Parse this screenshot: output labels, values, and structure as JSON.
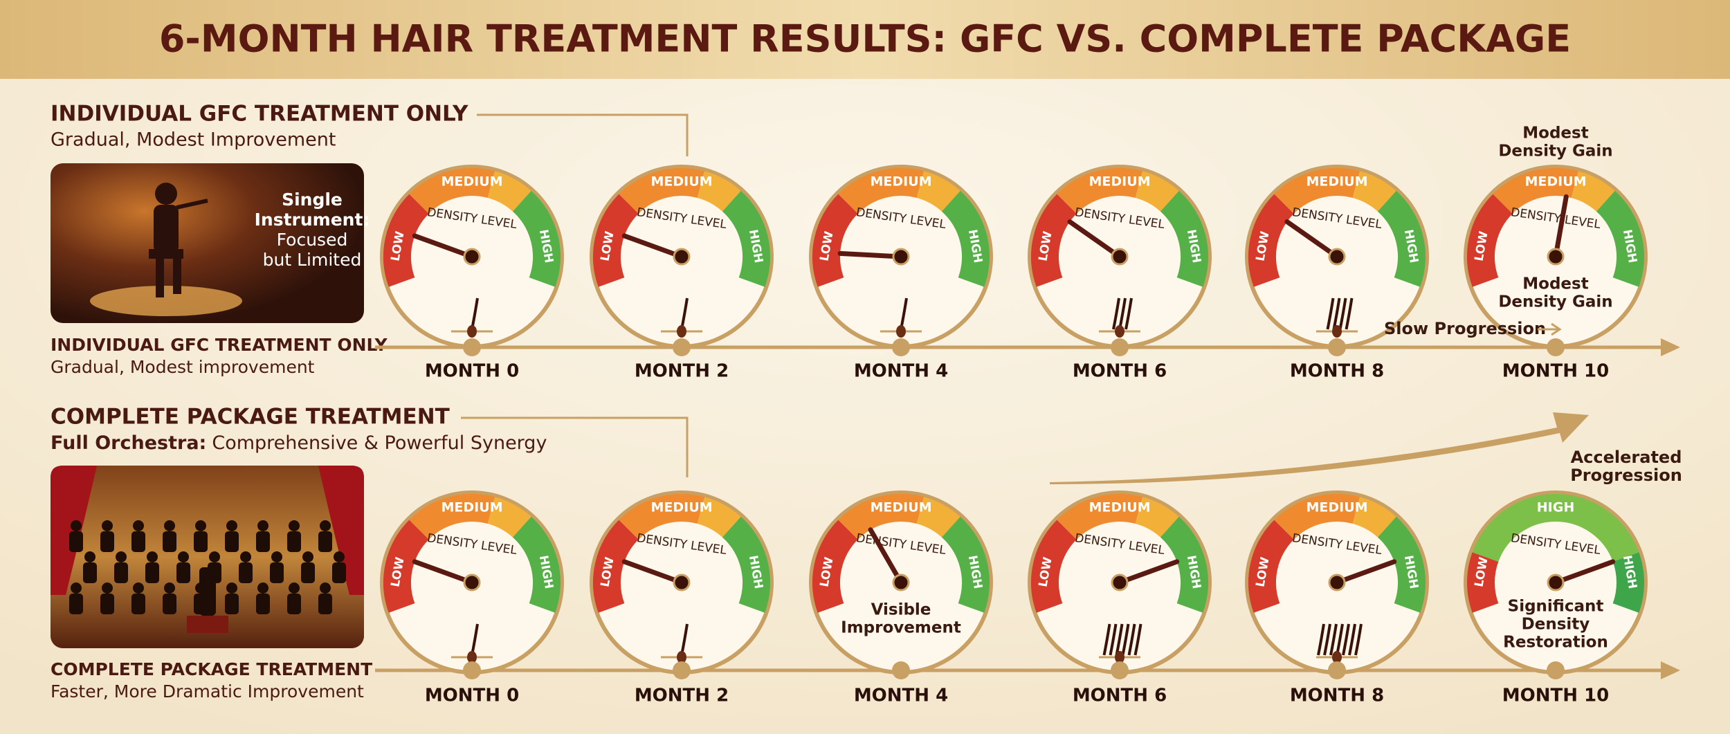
{
  "header": {
    "title": "6-MONTH HAIR TREATMENT RESULTS: GFC VS. COMPLETE PACKAGE"
  },
  "sections": [
    {
      "heading": "INDIVIDUAL GFC TREATMENT ONLY",
      "subheading": "Gradual, Modest Improvement",
      "image_caption": [
        "Single",
        "Instrument:",
        "Focused",
        "but Limited"
      ],
      "timeline_heading": "INDIVIDUAL GFC TREATMENT ONLY",
      "timeline_subheading": "Gradual, Modest improvement",
      "progression": [
        "Slow Progression"
      ],
      "gauges": [
        {
          "month": "MONTH 0",
          "low": "LOW",
          "top": "MEDIUM",
          "high": "HIGH",
          "center": "DENSITY LEVEL"
        },
        {
          "month": "MONTH 2",
          "low": "LOW",
          "top": "MEDIUM",
          "high": "HIGH",
          "center": "DENSITY LEVEL"
        },
        {
          "month": "MONTH 4",
          "low": "LOW",
          "top": "MEDIUM",
          "high": "HIGH",
          "center": "DENSITY LEVEL"
        },
        {
          "month": "MONTH 6",
          "low": "LOW",
          "top": "MEDIUM",
          "high": "HIGH",
          "center": "DENSITY LEVEL"
        },
        {
          "month": "MONTH 8",
          "low": "LOW",
          "top": "MEDIUM",
          "high": "HIGH",
          "center": "DENSITY LEVEL"
        },
        {
          "month": "MONTH 10",
          "low": "LOW",
          "top": "MEDIUM",
          "high": "HIGH",
          "center": "DENSITY LEVEL",
          "note_above": [
            "Modest",
            "Density Gain"
          ],
          "note": [
            "Modest",
            "Density Gain"
          ]
        }
      ]
    },
    {
      "heading": "COMPLETE PACKAGE TREATMENT",
      "subheading_bold": "Full Orchestra:",
      "subheading": "Comprehensive & Powerful Synergy",
      "timeline_heading": "COMPLETE PACKAGE TREATMENT",
      "timeline_subheading": "Faster, More Dramatic Improvement",
      "progression": [
        "Accelerated",
        "Progression"
      ],
      "gauges": [
        {
          "month": "MONTH 0",
          "low": "LOW",
          "top": "MEDIUM",
          "high": "HIGH",
          "center": "DENSITY LEVEL"
        },
        {
          "month": "MONTH 2",
          "low": "LOW",
          "top": "MEDIUM",
          "high": "HIGH",
          "center": "DENSITY LEVEL"
        },
        {
          "month": "MONTH 4",
          "low": "LOW",
          "top": "MEDIUM",
          "high": "HIGH",
          "center": "DENSITY LEVEL",
          "note": [
            "Visible",
            "Improvement"
          ]
        },
        {
          "month": "MONTH 6",
          "low": "LOW",
          "top": "MEDIUM",
          "high": "HIGH",
          "center": "DENSITY LEVEL"
        },
        {
          "month": "MONTH 8",
          "low": "LOW",
          "top": "MEDIUM",
          "high": "HIGH",
          "center": "DENSITY LEVEL"
        },
        {
          "month": "MONTH 10",
          "low": "LOW",
          "top": "HIGH",
          "high": "HIGH",
          "center": "DENSITY LEVEL",
          "note": [
            "Significant",
            "Density",
            "Restoration"
          ]
        }
      ]
    }
  ]
}
